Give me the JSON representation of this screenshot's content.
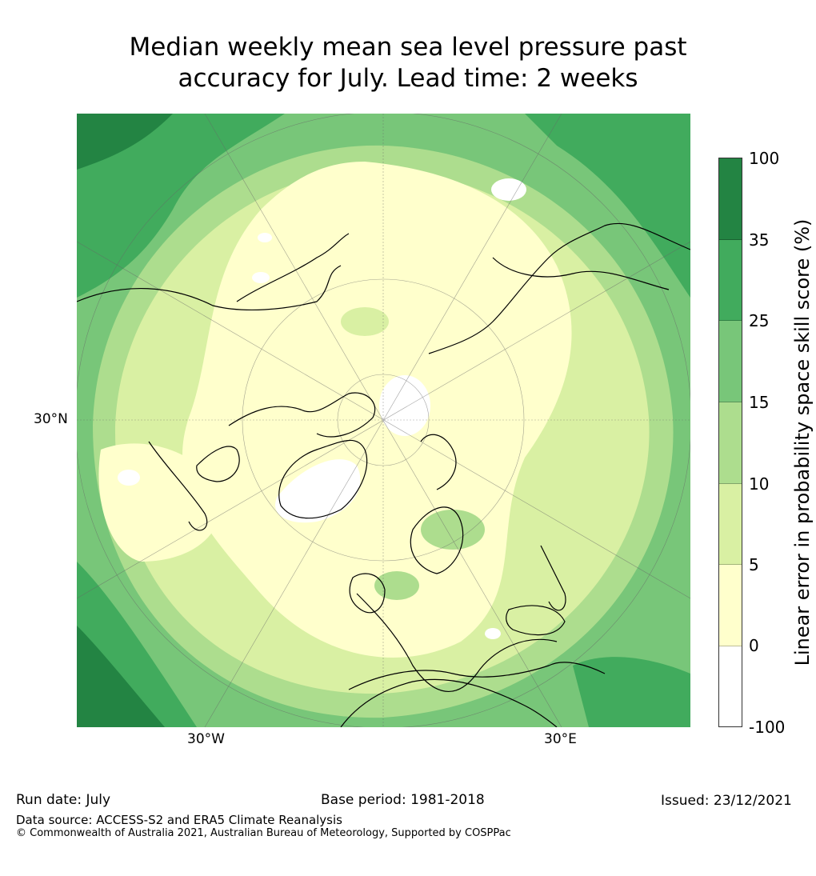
{
  "title_line1": "Median weekly mean sea level pressure past",
  "title_line2": "accuracy for July. Lead time: 2 weeks",
  "map_labels": {
    "lat": "30°N",
    "lon_w": "30°W",
    "lon_e": "30°E"
  },
  "colorbar": {
    "label": "Linear error in probability space skill score (%)",
    "ticks": [
      "100",
      "35",
      "25",
      "15",
      "10",
      "5",
      "0",
      "-100"
    ],
    "segment_colors": [
      "#238443",
      "#41ab5d",
      "#78c679",
      "#addd8e",
      "#d9f0a3",
      "#ffffcc",
      "#ffffff"
    ]
  },
  "footer": {
    "run_date": "Run date: July",
    "base_period": "Base period: 1981-2018",
    "issued": "Issued: 23/12/2021",
    "data_source": "Data source: ACCESS-S2 and ERA5 Climate Reanalysis",
    "copyright": "© Commonwealth of Australia 2021, Australian Bureau of Meteorology, Supported by COSPPac"
  },
  "colors": {
    "dark_green": "#238443",
    "mid_green": "#41ab5d",
    "green": "#78c679",
    "light_green": "#addd8e",
    "pale_green": "#d9f0a3",
    "cream": "#ffffcc"
  }
}
